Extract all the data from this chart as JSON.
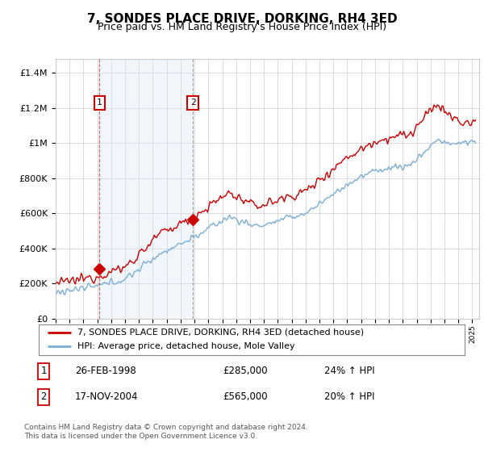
{
  "title": "7, SONDES PLACE DRIVE, DORKING, RH4 3ED",
  "subtitle": "Price paid vs. HM Land Registry's House Price Index (HPI)",
  "ylabel_ticks": [
    "£0",
    "£200K",
    "£400K",
    "£600K",
    "£800K",
    "£1M",
    "£1.2M",
    "£1.4M"
  ],
  "ytick_vals": [
    0,
    200000,
    400000,
    600000,
    800000,
    1000000,
    1200000,
    1400000
  ],
  "ylim": [
    0,
    1480000
  ],
  "xlim_start": 1995.0,
  "xlim_end": 2025.5,
  "sale1_date": 1998.15,
  "sale1_price": 285000,
  "sale1_label": "1",
  "sale2_date": 2004.88,
  "sale2_price": 565000,
  "sale2_label": "2",
  "legend_line1": "7, SONDES PLACE DRIVE, DORKING, RH4 3ED (detached house)",
  "legend_line2": "HPI: Average price, detached house, Mole Valley",
  "table_row1_num": "1",
  "table_row1_date": "26-FEB-1998",
  "table_row1_price": "£285,000",
  "table_row1_hpi": "24% ↑ HPI",
  "table_row2_num": "2",
  "table_row2_date": "17-NOV-2004",
  "table_row2_price": "£565,000",
  "table_row2_hpi": "20% ↑ HPI",
  "footer": "Contains HM Land Registry data © Crown copyright and database right 2024.\nThis data is licensed under the Open Government Licence v3.0.",
  "color_red": "#cc0000",
  "color_blue": "#7aaed6",
  "color_grid": "#cccccc",
  "box_color": "#cc0000",
  "bg_highlight": "#d8e8f5",
  "title_fontsize": 11,
  "subtitle_fontsize": 9
}
